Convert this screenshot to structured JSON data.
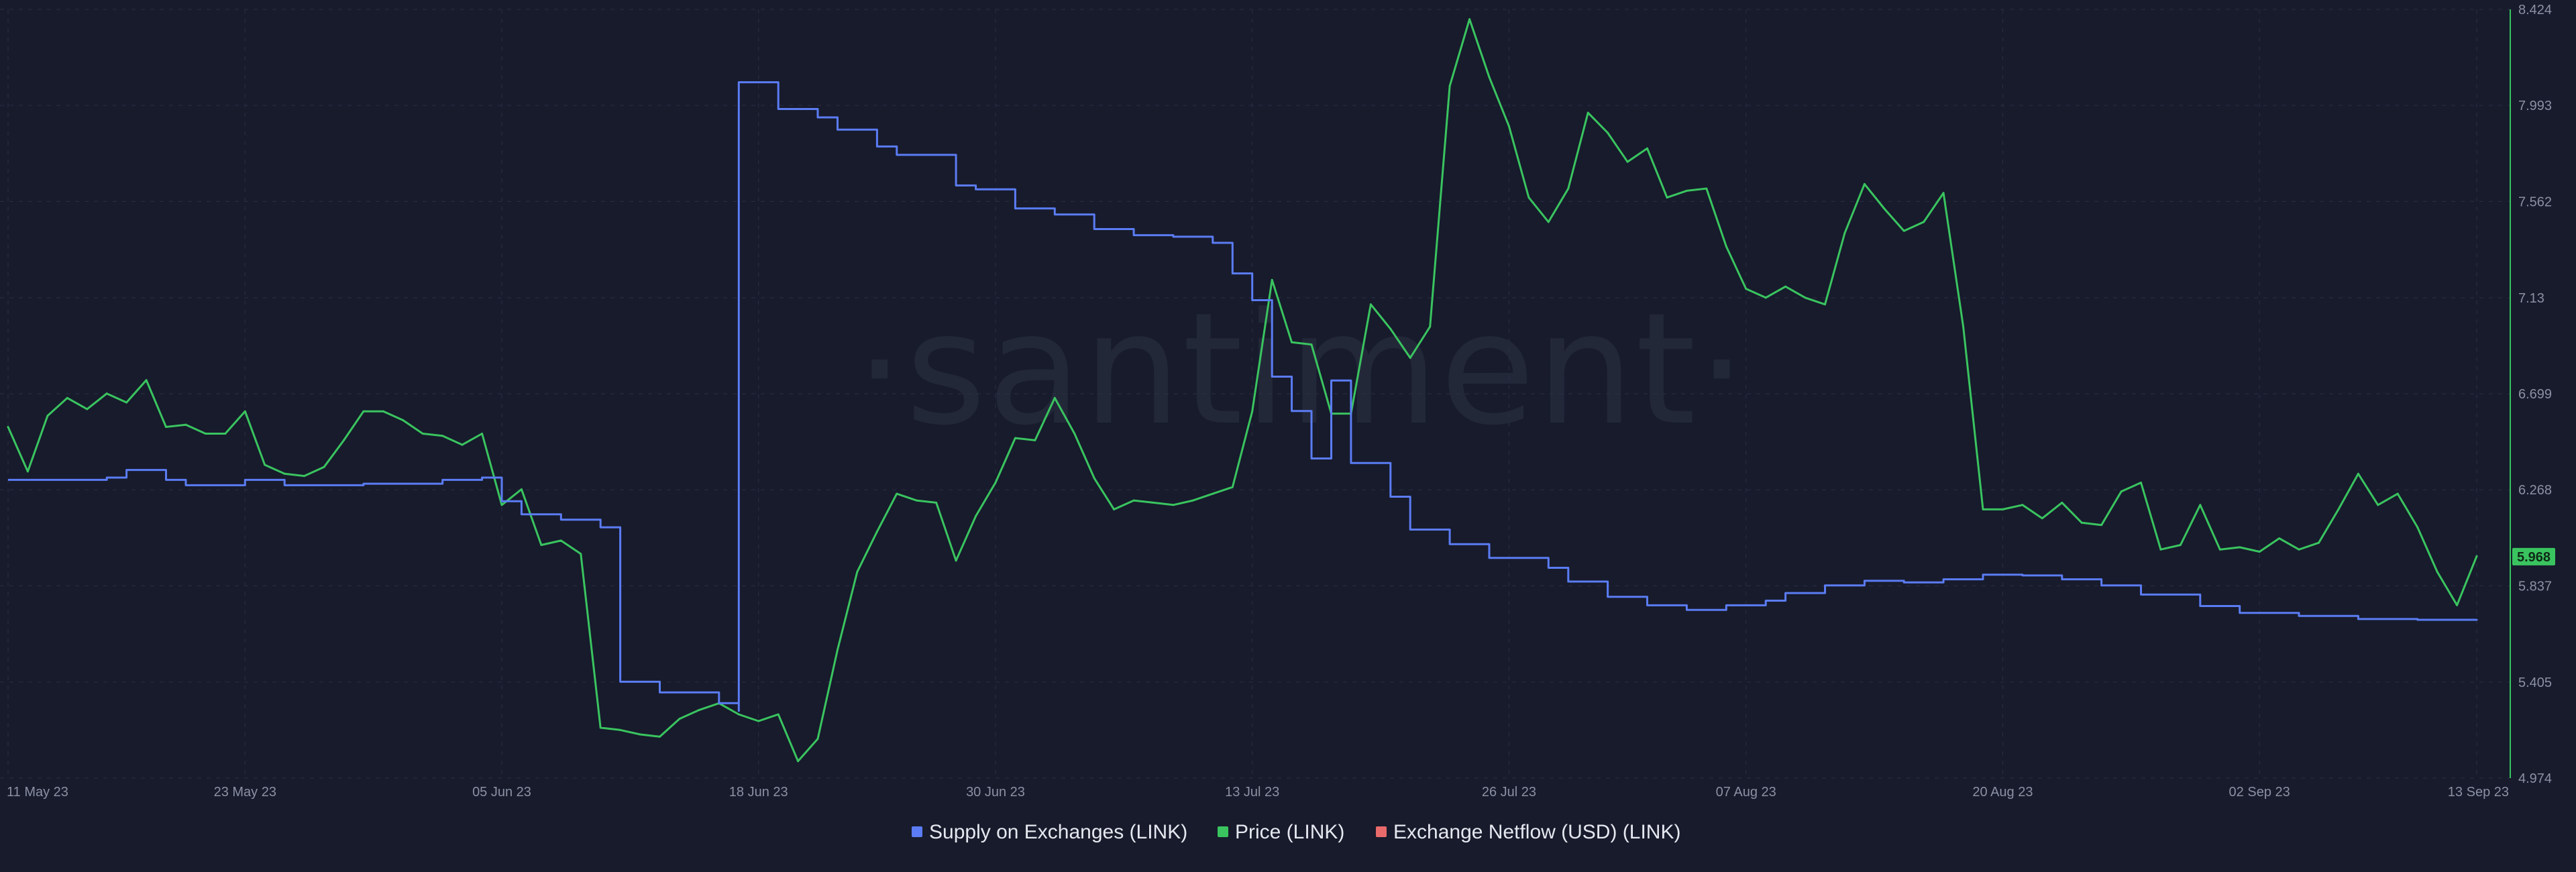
{
  "watermark": "·santiment·",
  "colors": {
    "background": "#171b2c",
    "grid": "#2a2f44",
    "supply": "#5b7cf4",
    "price": "#3ac45f",
    "netflow": "#e96a6a",
    "tick_text": "#8b90a3"
  },
  "chart_data": {
    "type": "line",
    "x_axis": {
      "type": "date",
      "range": [
        "2023-05-11",
        "2023-09-13"
      ],
      "tick_labels": [
        "11 May 23",
        "23 May 23",
        "05 Jun 23",
        "18 Jun 23",
        "30 Jun 23",
        "13 Jul 23",
        "26 Jul 23",
        "07 Aug 23",
        "20 Aug 23",
        "02 Sep 23",
        "13 Sep 23"
      ]
    },
    "y_axis_right": {
      "series": "Price (LINK)",
      "range": [
        4.974,
        8.424
      ],
      "tick_labels": [
        "8.424",
        "7.993",
        "7.562",
        "7.13",
        "6.699",
        "6.268",
        "5.837",
        "5.405",
        "4.974"
      ],
      "current_value_label": "5.968"
    },
    "grid": true,
    "legend_position": "bottom-center",
    "legend": [
      {
        "name": "Supply on Exchanges (LINK)",
        "color": "#5b7cf4"
      },
      {
        "name": "Price (LINK)",
        "color": "#3ac45f"
      },
      {
        "name": "Exchange Netflow (USD) (LINK)",
        "color": "#e96a6a"
      }
    ],
    "series": [
      {
        "name": "Price (LINK)",
        "color": "#3ac45f",
        "axis": "right",
        "points": [
          [
            "2023-05-11",
            6.55
          ],
          [
            "2023-05-12",
            6.35
          ],
          [
            "2023-05-13",
            6.6
          ],
          [
            "2023-05-14",
            6.68
          ],
          [
            "2023-05-15",
            6.63
          ],
          [
            "2023-05-16",
            6.7
          ],
          [
            "2023-05-17",
            6.66
          ],
          [
            "2023-05-18",
            6.76
          ],
          [
            "2023-05-19",
            6.55
          ],
          [
            "2023-05-20",
            6.56
          ],
          [
            "2023-05-21",
            6.52
          ],
          [
            "2023-05-22",
            6.52
          ],
          [
            "2023-05-23",
            6.62
          ],
          [
            "2023-05-24",
            6.38
          ],
          [
            "2023-05-25",
            6.34
          ],
          [
            "2023-05-26",
            6.33
          ],
          [
            "2023-05-27",
            6.37
          ],
          [
            "2023-05-28",
            6.49
          ],
          [
            "2023-05-29",
            6.62
          ],
          [
            "2023-05-30",
            6.62
          ],
          [
            "2023-05-31",
            6.58
          ],
          [
            "2023-06-01",
            6.52
          ],
          [
            "2023-06-02",
            6.51
          ],
          [
            "2023-06-03",
            6.47
          ],
          [
            "2023-06-04",
            6.52
          ],
          [
            "2023-06-05",
            6.2
          ],
          [
            "2023-06-06",
            6.27
          ],
          [
            "2023-06-07",
            6.02
          ],
          [
            "2023-06-08",
            6.04
          ],
          [
            "2023-06-09",
            5.98
          ],
          [
            "2023-06-10",
            5.2
          ],
          [
            "2023-06-11",
            5.19
          ],
          [
            "2023-06-12",
            5.17
          ],
          [
            "2023-06-13",
            5.16
          ],
          [
            "2023-06-14",
            5.24
          ],
          [
            "2023-06-15",
            5.28
          ],
          [
            "2023-06-16",
            5.31
          ],
          [
            "2023-06-17",
            5.26
          ],
          [
            "2023-06-18",
            5.23
          ],
          [
            "2023-06-19",
            5.26
          ],
          [
            "2023-06-20",
            5.05
          ],
          [
            "2023-06-21",
            5.15
          ],
          [
            "2023-06-22",
            5.55
          ],
          [
            "2023-06-23",
            5.9
          ],
          [
            "2023-06-24",
            6.08
          ],
          [
            "2023-06-25",
            6.25
          ],
          [
            "2023-06-26",
            6.22
          ],
          [
            "2023-06-27",
            6.21
          ],
          [
            "2023-06-28",
            5.95
          ],
          [
            "2023-06-29",
            6.15
          ],
          [
            "2023-06-30",
            6.3
          ],
          [
            "2023-07-01",
            6.5
          ],
          [
            "2023-07-02",
            6.49
          ],
          [
            "2023-07-03",
            6.68
          ],
          [
            "2023-07-04",
            6.52
          ],
          [
            "2023-07-05",
            6.32
          ],
          [
            "2023-07-06",
            6.18
          ],
          [
            "2023-07-07",
            6.22
          ],
          [
            "2023-07-08",
            6.21
          ],
          [
            "2023-07-09",
            6.2
          ],
          [
            "2023-07-10",
            6.22
          ],
          [
            "2023-07-11",
            6.25
          ],
          [
            "2023-07-12",
            6.28
          ],
          [
            "2023-07-13",
            6.62
          ],
          [
            "2023-07-14",
            7.21
          ],
          [
            "2023-07-15",
            6.93
          ],
          [
            "2023-07-16",
            6.92
          ],
          [
            "2023-07-17",
            6.61
          ],
          [
            "2023-07-18",
            6.61
          ],
          [
            "2023-07-19",
            7.1
          ],
          [
            "2023-07-20",
            6.99
          ],
          [
            "2023-07-21",
            6.86
          ],
          [
            "2023-07-22",
            7.0
          ],
          [
            "2023-07-23",
            8.08
          ],
          [
            "2023-07-24",
            8.38
          ],
          [
            "2023-07-25",
            8.12
          ],
          [
            "2023-07-26",
            7.9
          ],
          [
            "2023-07-27",
            7.58
          ],
          [
            "2023-07-28",
            7.47
          ],
          [
            "2023-07-29",
            7.62
          ],
          [
            "2023-07-30",
            7.96
          ],
          [
            "2023-07-31",
            7.87
          ],
          [
            "2023-08-01",
            7.74
          ],
          [
            "2023-08-02",
            7.8
          ],
          [
            "2023-08-03",
            7.58
          ],
          [
            "2023-08-04",
            7.61
          ],
          [
            "2023-08-05",
            7.62
          ],
          [
            "2023-08-06",
            7.36
          ],
          [
            "2023-08-07",
            7.17
          ],
          [
            "2023-08-08",
            7.13
          ],
          [
            "2023-08-09",
            7.18
          ],
          [
            "2023-08-10",
            7.13
          ],
          [
            "2023-08-11",
            7.1
          ],
          [
            "2023-08-12",
            7.42
          ],
          [
            "2023-08-13",
            7.64
          ],
          [
            "2023-08-14",
            7.53
          ],
          [
            "2023-08-15",
            7.43
          ],
          [
            "2023-08-16",
            7.47
          ],
          [
            "2023-08-17",
            7.6
          ],
          [
            "2023-08-18",
            7.0
          ],
          [
            "2023-08-19",
            6.18
          ],
          [
            "2023-08-20",
            6.18
          ],
          [
            "2023-08-21",
            6.2
          ],
          [
            "2023-08-22",
            6.14
          ],
          [
            "2023-08-23",
            6.21
          ],
          [
            "2023-08-24",
            6.12
          ],
          [
            "2023-08-25",
            6.11
          ],
          [
            "2023-08-26",
            6.26
          ],
          [
            "2023-08-27",
            6.3
          ],
          [
            "2023-08-28",
            6.0
          ],
          [
            "2023-08-29",
            6.02
          ],
          [
            "2023-08-30",
            6.2
          ],
          [
            "2023-08-31",
            6.0
          ],
          [
            "2023-09-01",
            6.01
          ],
          [
            "2023-09-02",
            5.99
          ],
          [
            "2023-09-03",
            6.05
          ],
          [
            "2023-09-04",
            6.0
          ],
          [
            "2023-09-05",
            6.03
          ],
          [
            "2023-09-06",
            6.18
          ],
          [
            "2023-09-07",
            6.34
          ],
          [
            "2023-09-08",
            6.2
          ],
          [
            "2023-09-09",
            6.25
          ],
          [
            "2023-09-10",
            6.1
          ],
          [
            "2023-09-11",
            5.9
          ],
          [
            "2023-09-12",
            5.75
          ],
          [
            "2023-09-13",
            5.97
          ]
        ]
      },
      {
        "name": "Supply on Exchanges (LINK)",
        "color": "#5b7cf4",
        "axis": "left (unlabeled)",
        "note": "relative level 0–1 (axis not labeled)",
        "points": [
          [
            "2023-05-11",
            0.39
          ],
          [
            "2023-05-14",
            0.39
          ],
          [
            "2023-05-16",
            0.393
          ],
          [
            "2023-05-17",
            0.403
          ],
          [
            "2023-05-19",
            0.39
          ],
          [
            "2023-05-20",
            0.383
          ],
          [
            "2023-05-23",
            0.39
          ],
          [
            "2023-05-25",
            0.383
          ],
          [
            "2023-05-29",
            0.385
          ],
          [
            "2023-06-02",
            0.39
          ],
          [
            "2023-06-04",
            0.393
          ],
          [
            "2023-06-05",
            0.362
          ],
          [
            "2023-06-06",
            0.345
          ],
          [
            "2023-06-08",
            0.338
          ],
          [
            "2023-06-10",
            0.328
          ],
          [
            "2023-06-11",
            0.126
          ],
          [
            "2023-06-13",
            0.112
          ],
          [
            "2023-06-16",
            0.098
          ],
          [
            "2023-06-17",
            0.088
          ],
          [
            "2023-06-17",
            0.91
          ],
          [
            "2023-06-19",
            0.875
          ],
          [
            "2023-06-21",
            0.864
          ],
          [
            "2023-06-22",
            0.848
          ],
          [
            "2023-06-24",
            0.826
          ],
          [
            "2023-06-25",
            0.815
          ],
          [
            "2023-06-27",
            0.815
          ],
          [
            "2023-06-28",
            0.775
          ],
          [
            "2023-06-29",
            0.77
          ],
          [
            "2023-07-01",
            0.745
          ],
          [
            "2023-07-03",
            0.737
          ],
          [
            "2023-07-05",
            0.718
          ],
          [
            "2023-07-07",
            0.71
          ],
          [
            "2023-07-09",
            0.708
          ],
          [
            "2023-07-11",
            0.7
          ],
          [
            "2023-07-12",
            0.66
          ],
          [
            "2023-07-13",
            0.625
          ],
          [
            "2023-07-14",
            0.525
          ],
          [
            "2023-07-15",
            0.48
          ],
          [
            "2023-07-16",
            0.418
          ],
          [
            "2023-07-17",
            0.52
          ],
          [
            "2023-07-18",
            0.412
          ],
          [
            "2023-07-20",
            0.368
          ],
          [
            "2023-07-21",
            0.325
          ],
          [
            "2023-07-23",
            0.306
          ],
          [
            "2023-07-25",
            0.288
          ],
          [
            "2023-07-28",
            0.275
          ],
          [
            "2023-07-29",
            0.257
          ],
          [
            "2023-07-31",
            0.237
          ],
          [
            "2023-08-02",
            0.226
          ],
          [
            "2023-08-04",
            0.22
          ],
          [
            "2023-08-06",
            0.226
          ],
          [
            "2023-08-08",
            0.232
          ],
          [
            "2023-08-09",
            0.242
          ],
          [
            "2023-08-11",
            0.252
          ],
          [
            "2023-08-13",
            0.258
          ],
          [
            "2023-08-15",
            0.256
          ],
          [
            "2023-08-17",
            0.26
          ],
          [
            "2023-08-19",
            0.266
          ],
          [
            "2023-08-21",
            0.265
          ],
          [
            "2023-08-23",
            0.26
          ],
          [
            "2023-08-25",
            0.252
          ],
          [
            "2023-08-27",
            0.24
          ],
          [
            "2023-08-30",
            0.225
          ],
          [
            "2023-09-01",
            0.216
          ],
          [
            "2023-09-04",
            0.212
          ],
          [
            "2023-09-07",
            0.208
          ],
          [
            "2023-09-10",
            0.207
          ],
          [
            "2023-09-13",
            0.208
          ]
        ]
      }
    ]
  }
}
